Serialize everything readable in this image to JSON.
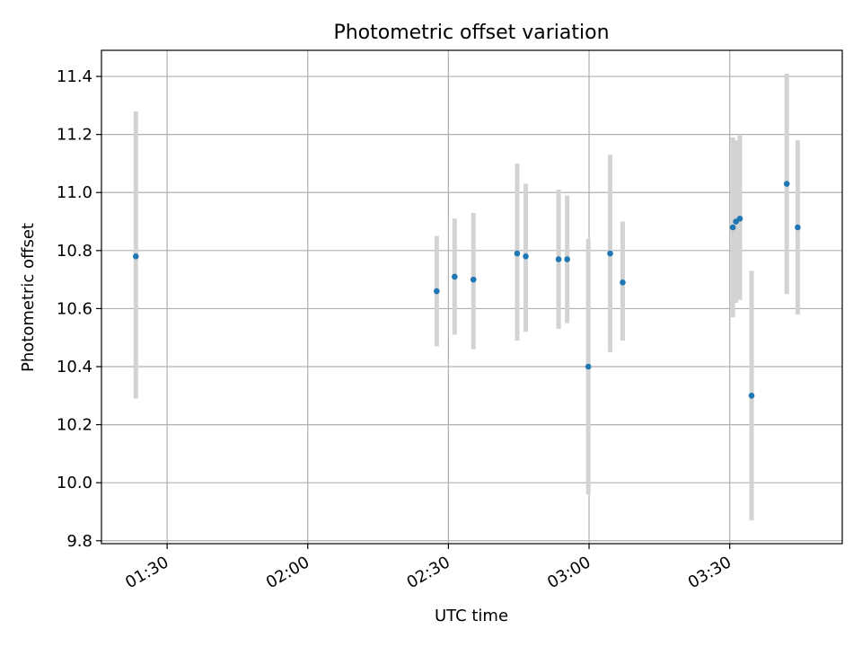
{
  "chart_data": {
    "type": "scatter",
    "title": "Photometric offset variation",
    "xlabel": "UTC time",
    "ylabel": "Photometric offset",
    "xlim": [
      "01:16",
      "03:54"
    ],
    "ylim": [
      9.79,
      11.49
    ],
    "x_ticks": [
      "01:30",
      "02:00",
      "02:30",
      "03:00",
      "03:30"
    ],
    "y_ticks": [
      "9.8",
      "10.0",
      "10.2",
      "10.4",
      "10.6",
      "10.8",
      "11.0",
      "11.2",
      "11.4"
    ],
    "y_tick_values": [
      9.8,
      10.0,
      10.2,
      10.4,
      10.6,
      10.8,
      11.0,
      11.2,
      11.4
    ],
    "grid": true,
    "point_color": "#1f77b4",
    "errorbar_color": "#d3d3d3",
    "points": [
      {
        "t": "01:23:20",
        "y": 10.78,
        "lo": 10.29,
        "hi": 11.28
      },
      {
        "t": "02:27:30",
        "y": 10.66,
        "lo": 10.47,
        "hi": 10.85
      },
      {
        "t": "02:31:20",
        "y": 10.71,
        "lo": 10.51,
        "hi": 10.91
      },
      {
        "t": "02:35:20",
        "y": 10.7,
        "lo": 10.46,
        "hi": 10.93
      },
      {
        "t": "02:44:40",
        "y": 10.79,
        "lo": 10.49,
        "hi": 11.1
      },
      {
        "t": "02:46:30",
        "y": 10.78,
        "lo": 10.52,
        "hi": 11.03
      },
      {
        "t": "02:53:30",
        "y": 10.77,
        "lo": 10.53,
        "hi": 11.01
      },
      {
        "t": "02:55:20",
        "y": 10.77,
        "lo": 10.55,
        "hi": 10.99
      },
      {
        "t": "02:59:50",
        "y": 10.4,
        "lo": 9.96,
        "hi": 10.84
      },
      {
        "t": "03:04:30",
        "y": 10.79,
        "lo": 10.45,
        "hi": 11.13
      },
      {
        "t": "03:07:10",
        "y": 10.69,
        "lo": 10.49,
        "hi": 10.9
      },
      {
        "t": "03:30:40",
        "y": 10.88,
        "lo": 10.57,
        "hi": 11.19
      },
      {
        "t": "03:31:20",
        "y": 10.9,
        "lo": 10.62,
        "hi": 11.18
      },
      {
        "t": "03:32:10",
        "y": 10.91,
        "lo": 10.63,
        "hi": 11.2
      },
      {
        "t": "03:34:40",
        "y": 10.3,
        "lo": 9.87,
        "hi": 10.73
      },
      {
        "t": "03:42:10",
        "y": 11.03,
        "lo": 10.65,
        "hi": 11.41
      },
      {
        "t": "03:44:30",
        "y": 10.88,
        "lo": 10.58,
        "hi": 11.18
      }
    ]
  }
}
